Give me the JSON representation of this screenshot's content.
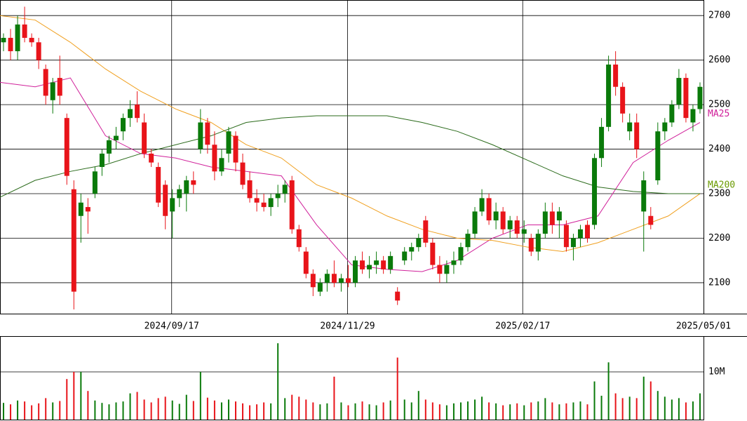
{
  "chart_data": [
    {
      "type": "candlestick",
      "up_color": "#0a7a0a",
      "down_color": "#e8141a",
      "ylim": [
        2029,
        2735
      ],
      "yticks": [
        2100,
        2200,
        2300,
        2400,
        2500,
        2600,
        2700
      ],
      "xlim": [
        0,
        100
      ],
      "xticks": [
        {
          "value": 24.4,
          "label": "2024/09/17"
        },
        {
          "value": 49.4,
          "label": "2024/11/29"
        },
        {
          "value": 74.3,
          "label": "2025/02/17"
        },
        {
          "value": 100,
          "label": "2025/05/01"
        }
      ],
      "grid": true,
      "candles": [
        [
          2640,
          2660,
          2620,
          2650
        ],
        [
          2650,
          2670,
          2600,
          2620
        ],
        [
          2620,
          2700,
          2600,
          2680
        ],
        [
          2680,
          2720,
          2640,
          2650
        ],
        [
          2650,
          2660,
          2630,
          2640
        ],
        [
          2640,
          2650,
          2580,
          2600
        ],
        [
          2580,
          2590,
          2500,
          2520
        ],
        [
          2510,
          2560,
          2480,
          2550
        ],
        [
          2560,
          2610,
          2500,
          2520
        ],
        [
          2470,
          2480,
          2320,
          2340
        ],
        [
          2310,
          2330,
          2040,
          2080
        ],
        [
          2250,
          2300,
          2190,
          2280
        ],
        [
          2270,
          2290,
          2210,
          2260
        ],
        [
          2300,
          2360,
          2290,
          2350
        ],
        [
          2360,
          2400,
          2340,
          2390
        ],
        [
          2390,
          2430,
          2370,
          2420
        ],
        [
          2420,
          2450,
          2400,
          2430
        ],
        [
          2440,
          2480,
          2420,
          2470
        ],
        [
          2470,
          2510,
          2450,
          2490
        ],
        [
          2500,
          2530,
          2460,
          2470
        ],
        [
          2460,
          2480,
          2380,
          2390
        ],
        [
          2390,
          2400,
          2360,
          2370
        ],
        [
          2360,
          2370,
          2270,
          2280
        ],
        [
          2320,
          2330,
          2220,
          2250
        ],
        [
          2260,
          2310,
          2200,
          2290
        ],
        [
          2290,
          2320,
          2270,
          2310
        ],
        [
          2300,
          2340,
          2260,
          2330
        ],
        [
          2330,
          2350,
          2300,
          2320
        ],
        [
          2400,
          2490,
          2390,
          2460
        ],
        [
          2460,
          2470,
          2390,
          2410
        ],
        [
          2410,
          2440,
          2330,
          2350
        ],
        [
          2350,
          2400,
          2340,
          2380
        ],
        [
          2390,
          2450,
          2370,
          2440
        ],
        [
          2430,
          2440,
          2350,
          2370
        ],
        [
          2370,
          2390,
          2310,
          2320
        ],
        [
          2330,
          2350,
          2280,
          2290
        ],
        [
          2290,
          2310,
          2260,
          2280
        ],
        [
          2280,
          2300,
          2260,
          2270
        ],
        [
          2270,
          2300,
          2250,
          2290
        ],
        [
          2290,
          2320,
          2270,
          2300
        ],
        [
          2300,
          2330,
          2280,
          2320
        ],
        [
          2330,
          2340,
          2210,
          2220
        ],
        [
          2220,
          2230,
          2170,
          2180
        ],
        [
          2170,
          2180,
          2110,
          2120
        ],
        [
          2120,
          2130,
          2070,
          2090
        ],
        [
          2080,
          2110,
          2070,
          2100
        ],
        [
          2100,
          2130,
          2080,
          2120
        ],
        [
          2120,
          2150,
          2090,
          2100
        ],
        [
          2100,
          2120,
          2080,
          2110
        ],
        [
          2110,
          2140,
          2090,
          2100
        ],
        [
          2100,
          2160,
          2090,
          2150
        ],
        [
          2150,
          2170,
          2120,
          2130
        ],
        [
          2130,
          2160,
          2110,
          2140
        ],
        [
          2140,
          2170,
          2120,
          2150
        ],
        [
          2150,
          2160,
          2120,
          2130
        ],
        [
          2130,
          2170,
          2120,
          2160
        ],
        [
          2080,
          2090,
          2050,
          2060
        ],
        [
          2150,
          2180,
          2140,
          2170
        ],
        [
          2170,
          2190,
          2150,
          2180
        ],
        [
          2180,
          2210,
          2170,
          2200
        ],
        [
          2240,
          2250,
          2180,
          2190
        ],
        [
          2190,
          2200,
          2130,
          2140
        ],
        [
          2140,
          2160,
          2100,
          2120
        ],
        [
          2120,
          2150,
          2100,
          2140
        ],
        [
          2140,
          2170,
          2120,
          2150
        ],
        [
          2150,
          2190,
          2140,
          2180
        ],
        [
          2180,
          2220,
          2170,
          2210
        ],
        [
          2210,
          2270,
          2200,
          2260
        ],
        [
          2260,
          2310,
          2250,
          2290
        ],
        [
          2290,
          2300,
          2230,
          2240
        ],
        [
          2240,
          2280,
          2220,
          2260
        ],
        [
          2260,
          2270,
          2210,
          2220
        ],
        [
          2220,
          2250,
          2200,
          2240
        ],
        [
          2240,
          2250,
          2200,
          2210
        ],
        [
          2210,
          2240,
          2190,
          2220
        ],
        [
          2200,
          2210,
          2160,
          2170
        ],
        [
          2170,
          2220,
          2150,
          2210
        ],
        [
          2210,
          2280,
          2200,
          2260
        ],
        [
          2260,
          2280,
          2210,
          2230
        ],
        [
          2240,
          2270,
          2200,
          2260
        ],
        [
          2230,
          2240,
          2170,
          2180
        ],
        [
          2180,
          2210,
          2150,
          2200
        ],
        [
          2200,
          2230,
          2180,
          2220
        ],
        [
          2230,
          2240,
          2190,
          2200
        ],
        [
          2230,
          2390,
          2220,
          2380
        ],
        [
          2380,
          2470,
          2360,
          2450
        ],
        [
          2450,
          2610,
          2440,
          2590
        ],
        [
          2590,
          2620,
          2520,
          2540
        ],
        [
          2540,
          2550,
          2460,
          2480
        ],
        [
          2440,
          2480,
          2420,
          2460
        ],
        [
          2460,
          2480,
          2380,
          2400
        ],
        [
          2260,
          2350,
          2170,
          2330
        ],
        [
          2250,
          2270,
          2220,
          2230
        ],
        [
          2330,
          2460,
          2320,
          2440
        ],
        [
          2440,
          2470,
          2420,
          2460
        ],
        [
          2460,
          2510,
          2450,
          2500
        ],
        [
          2500,
          2580,
          2490,
          2560
        ],
        [
          2560,
          2570,
          2460,
          2470
        ],
        [
          2460,
          2500,
          2440,
          2490
        ],
        [
          2490,
          2550,
          2480,
          2540
        ]
      ],
      "series": [
        {
          "name": "MA25",
          "color": "#d0209a",
          "x": [
            0,
            5,
            10,
            15,
            20,
            25,
            30,
            35,
            40,
            45,
            50,
            55,
            60,
            65,
            70,
            75,
            80,
            85,
            90,
            95,
            99.5
          ],
          "values": [
            2550,
            2540,
            2560,
            2430,
            2390,
            2380,
            2360,
            2350,
            2340,
            2230,
            2140,
            2130,
            2125,
            2150,
            2200,
            2230,
            2230,
            2250,
            2370,
            2420,
            2460
          ]
        },
        {
          "name": null,
          "color": "#f0a020",
          "x": [
            0,
            5,
            10,
            15,
            20,
            25,
            30,
            35,
            40,
            45,
            50,
            55,
            60,
            65,
            70,
            75,
            80,
            85,
            90,
            95,
            99.5
          ],
          "values": [
            2700,
            2690,
            2640,
            2580,
            2530,
            2490,
            2460,
            2410,
            2380,
            2320,
            2290,
            2250,
            2220,
            2200,
            2195,
            2180,
            2170,
            2190,
            2220,
            2250,
            2300
          ]
        },
        {
          "name": "MA200",
          "color": "#2a6a1a",
          "label_color": "#6a9a00",
          "x": [
            0,
            5,
            10,
            15,
            20,
            25,
            30,
            35,
            40,
            45,
            50,
            55,
            60,
            65,
            70,
            75,
            80,
            85,
            90,
            95,
            99.5
          ],
          "values": [
            2292,
            2330,
            2350,
            2365,
            2390,
            2410,
            2430,
            2460,
            2470,
            2475,
            2475,
            2475,
            2460,
            2440,
            2410,
            2375,
            2340,
            2315,
            2305,
            2300,
            2300
          ]
        }
      ]
    },
    {
      "type": "bar",
      "color_up": "#0a7a0a",
      "color_down": "#e8141a",
      "ylim": [
        0,
        17350000
      ],
      "yticks": [
        {
          "value": 10000000,
          "label": "10M"
        }
      ],
      "values": [
        3500000,
        3200000,
        4000000,
        3800000,
        3000000,
        3400000,
        4500000,
        3600000,
        3900000,
        8500000,
        10000000,
        10000000,
        6000000,
        4000000,
        3500000,
        3200000,
        3600000,
        3800000,
        5500000,
        5800000,
        4200000,
        3600000,
        4500000,
        4800000,
        4000000,
        3300000,
        5200000,
        3900000,
        10000000,
        4600000,
        4000000,
        3600000,
        4200000,
        3800000,
        3400000,
        3000000,
        3200000,
        3600000,
        3400000,
        16000000,
        4500000,
        5200000,
        4800000,
        4200000,
        3600000,
        3200000,
        3400000,
        9000000,
        3600000,
        3000000,
        3400000,
        3800000,
        3200000,
        3000000,
        3600000,
        4000000,
        13000000,
        4200000,
        3600000,
        6000000,
        4200000,
        3600000,
        3200000,
        3000000,
        3400000,
        3600000,
        3800000,
        4200000,
        4800000,
        3600000,
        3400000,
        3000000,
        3200000,
        3400000,
        3000000,
        3600000,
        3800000,
        4500000,
        3600000,
        3200000,
        3400000,
        3600000,
        3800000,
        3200000,
        8000000,
        5000000,
        12000000,
        5500000,
        4500000,
        4800000,
        4500000,
        9000000,
        8000000,
        6000000,
        4800000,
        4200000,
        4500000,
        3600000,
        3800000,
        5500000
      ]
    }
  ]
}
